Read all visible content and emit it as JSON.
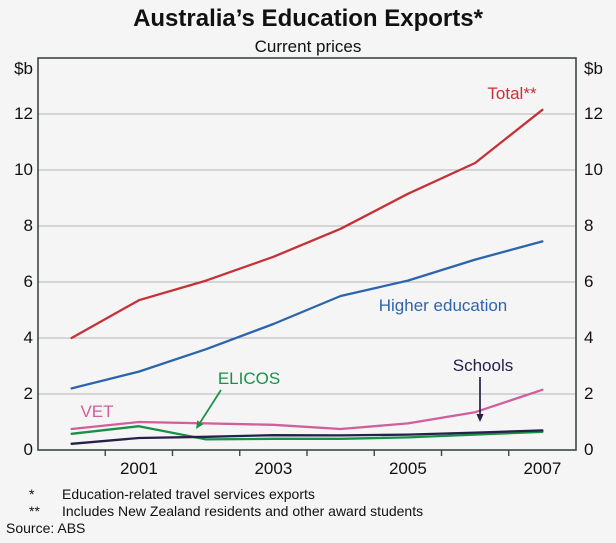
{
  "title": "Australia’s Education Exports*",
  "subtitle": "Current prices",
  "y_axis_unit": "$b",
  "chart_data": {
    "type": "line",
    "x": [
      2000,
      2001,
      2002,
      2003,
      2004,
      2005,
      2006,
      2007
    ],
    "series": [
      {
        "name": "Total",
        "label": "Total**",
        "color": "#c53236",
        "values": [
          4.0,
          5.35,
          6.05,
          6.9,
          7.9,
          9.15,
          10.25,
          12.15
        ]
      },
      {
        "name": "Higher education",
        "label": "Higher education",
        "color": "#2d65ab",
        "values": [
          2.2,
          2.8,
          3.6,
          4.5,
          5.5,
          6.05,
          6.8,
          7.45
        ]
      },
      {
        "name": "VET",
        "label": "VET",
        "color": "#d05f9a",
        "values": [
          0.75,
          1.0,
          0.95,
          0.9,
          0.75,
          0.95,
          1.35,
          2.15
        ]
      },
      {
        "name": "ELICOS",
        "label": "ELICOS",
        "color": "#179148",
        "values": [
          0.58,
          0.85,
          0.38,
          0.4,
          0.4,
          0.45,
          0.55,
          0.65
        ]
      },
      {
        "name": "Schools",
        "label": "Schools",
        "color": "#26204b",
        "values": [
          0.22,
          0.43,
          0.47,
          0.53,
          0.52,
          0.55,
          0.62,
          0.7
        ]
      }
    ],
    "title": "Australia’s Education Exports*",
    "subtitle": "Current prices",
    "ylabel": "$b",
    "ylim": [
      0,
      14
    ],
    "y_ticks": [
      0,
      2,
      4,
      6,
      8,
      10,
      12
    ],
    "x_tick_labels": [
      2001,
      2003,
      2005,
      2007
    ],
    "grid": true,
    "legend_position": "inline-labels"
  },
  "footnotes": [
    {
      "marker": "*",
      "text": "Education-related travel services exports"
    },
    {
      "marker": "**",
      "text": "Includes New Zealand residents and other award students"
    }
  ],
  "source": "Source: ABS"
}
